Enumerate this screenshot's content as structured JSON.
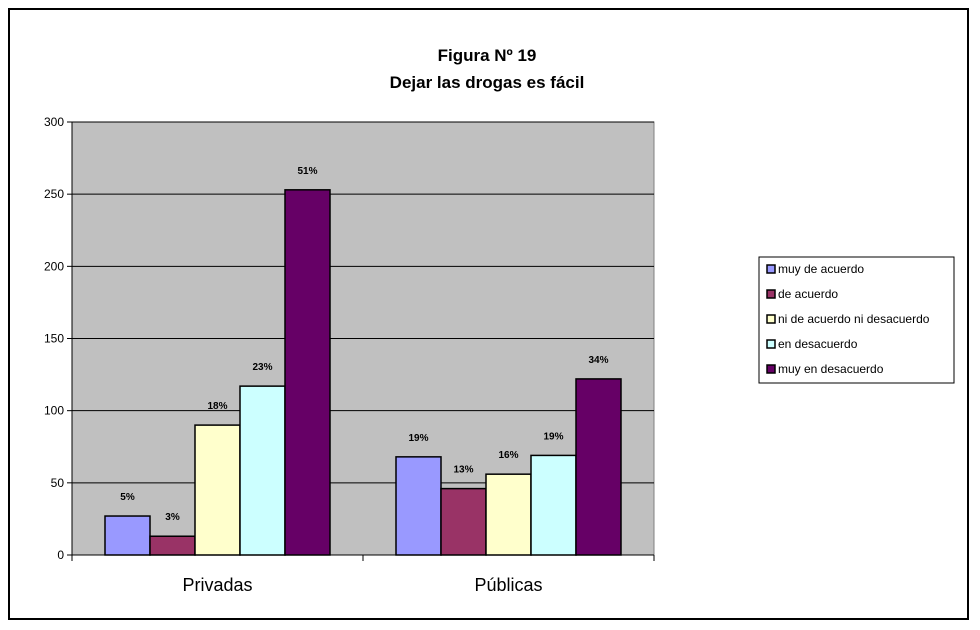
{
  "chart_data": {
    "type": "bar",
    "title": "Figura Nº 19",
    "subtitle": "Dejar las drogas es fácil",
    "xlabel": "",
    "ylabel": "",
    "ylim": [
      0,
      300
    ],
    "yticks": [
      0,
      50,
      100,
      150,
      200,
      250,
      300
    ],
    "grid": true,
    "legend_position": "right",
    "categories": [
      "Privadas",
      "Públicas"
    ],
    "series": [
      {
        "name": "muy de acuerdo",
        "color": "#9999ff",
        "values": [
          27,
          68
        ],
        "labels": [
          "5%",
          "19%"
        ]
      },
      {
        "name": "de acuerdo",
        "color": "#993366",
        "values": [
          13,
          46
        ],
        "labels": [
          "3%",
          "13%"
        ]
      },
      {
        "name": "ni de acuerdo ni desacuerdo",
        "color": "#ffffcc",
        "values": [
          90,
          56
        ],
        "labels": [
          "18%",
          "16%"
        ]
      },
      {
        "name": "en desacuerdo",
        "color": "#ccffff",
        "values": [
          117,
          69
        ],
        "labels": [
          "23%",
          "19%"
        ]
      },
      {
        "name": "muy en desacuerdo",
        "color": "#660066",
        "values": [
          253,
          122
        ],
        "labels": [
          "51%",
          "34%"
        ]
      }
    ],
    "plot_background": "#c0c0c0"
  }
}
